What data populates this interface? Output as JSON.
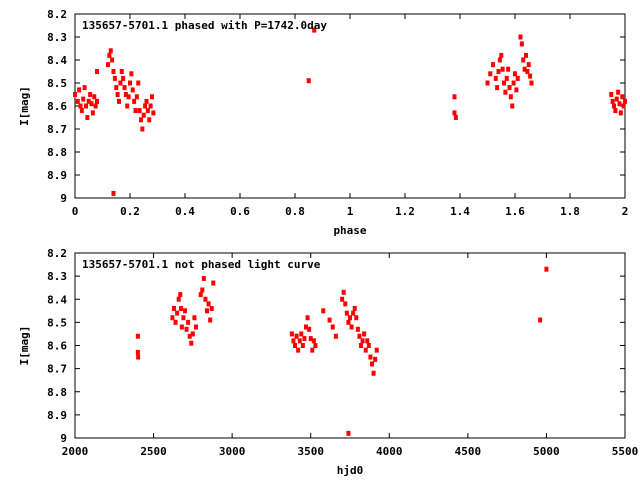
{
  "chart_data": [
    {
      "type": "scatter",
      "title": "135657-5701.1 phased with P=1742.0day",
      "xlabel": "phase",
      "ylabel": "I[mag]",
      "xlim": [
        0,
        2
      ],
      "ylim": [
        8.2,
        9.0
      ],
      "y_inverted": true,
      "x_ticks": [
        "0",
        "0.2",
        "0.4",
        "0.6",
        "0.8",
        "1",
        "1.2",
        "1.4",
        "1.6",
        "1.8",
        "2"
      ],
      "y_ticks": [
        "8.2",
        "8.3",
        "8.4",
        "8.5",
        "8.6",
        "8.7",
        "8.8",
        "8.9",
        "9"
      ],
      "marker_color": "#ff0000",
      "series": [
        {
          "points": [
            [
              0.0,
              8.55
            ],
            [
              0.01,
              8.58
            ],
            [
              0.015,
              8.53
            ],
            [
              0.02,
              8.6
            ],
            [
              0.025,
              8.62
            ],
            [
              0.03,
              8.57
            ],
            [
              0.035,
              8.52
            ],
            [
              0.04,
              8.6
            ],
            [
              0.045,
              8.65
            ],
            [
              0.05,
              8.58
            ],
            [
              0.055,
              8.55
            ],
            [
              0.06,
              8.59
            ],
            [
              0.065,
              8.63
            ],
            [
              0.07,
              8.56
            ],
            [
              0.075,
              8.6
            ],
            [
              0.08,
              8.58
            ],
            [
              0.08,
              8.45
            ],
            [
              0.12,
              8.42
            ],
            [
              0.125,
              8.38
            ],
            [
              0.13,
              8.36
            ],
            [
              0.135,
              8.4
            ],
            [
              0.14,
              8.45
            ],
            [
              0.145,
              8.48
            ],
            [
              0.15,
              8.52
            ],
            [
              0.155,
              8.55
            ],
            [
              0.16,
              8.58
            ],
            [
              0.165,
              8.5
            ],
            [
              0.17,
              8.45
            ],
            [
              0.175,
              8.48
            ],
            [
              0.18,
              8.52
            ],
            [
              0.185,
              8.55
            ],
            [
              0.19,
              8.6
            ],
            [
              0.195,
              8.56
            ],
            [
              0.2,
              8.5
            ],
            [
              0.205,
              8.46
            ],
            [
              0.21,
              8.53
            ],
            [
              0.215,
              8.58
            ],
            [
              0.22,
              8.62
            ],
            [
              0.225,
              8.56
            ],
            [
              0.23,
              8.5
            ],
            [
              0.14,
              8.98
            ],
            [
              0.235,
              8.62
            ],
            [
              0.24,
              8.66
            ],
            [
              0.245,
              8.7
            ],
            [
              0.25,
              8.64
            ],
            [
              0.255,
              8.6
            ],
            [
              0.26,
              8.58
            ],
            [
              0.265,
              8.62
            ],
            [
              0.27,
              8.66
            ],
            [
              0.275,
              8.6
            ],
            [
              0.28,
              8.56
            ],
            [
              0.285,
              8.63
            ],
            [
              0.85,
              8.49
            ],
            [
              0.87,
              8.27
            ],
            [
              1.38,
              8.56
            ],
            [
              1.38,
              8.63
            ],
            [
              1.385,
              8.65
            ],
            [
              1.5,
              8.5
            ],
            [
              1.51,
              8.46
            ],
            [
              1.52,
              8.42
            ],
            [
              1.53,
              8.48
            ],
            [
              1.535,
              8.52
            ],
            [
              1.54,
              8.45
            ],
            [
              1.545,
              8.4
            ],
            [
              1.55,
              8.38
            ],
            [
              1.555,
              8.44
            ],
            [
              1.56,
              8.5
            ],
            [
              1.565,
              8.54
            ],
            [
              1.57,
              8.48
            ],
            [
              1.575,
              8.44
            ],
            [
              1.58,
              8.52
            ],
            [
              1.585,
              8.56
            ],
            [
              1.59,
              8.6
            ],
            [
              1.595,
              8.5
            ],
            [
              1.6,
              8.46
            ],
            [
              1.605,
              8.53
            ],
            [
              1.61,
              8.48
            ],
            [
              1.62,
              8.3
            ],
            [
              1.625,
              8.33
            ],
            [
              1.63,
              8.4
            ],
            [
              1.635,
              8.44
            ],
            [
              1.64,
              8.38
            ],
            [
              1.645,
              8.45
            ],
            [
              1.65,
              8.42
            ],
            [
              1.655,
              8.47
            ],
            [
              1.66,
              8.5
            ],
            [
              1.95,
              8.55
            ],
            [
              1.955,
              8.58
            ],
            [
              1.96,
              8.6
            ],
            [
              1.965,
              8.62
            ],
            [
              1.97,
              8.57
            ],
            [
              1.975,
              8.54
            ],
            [
              1.98,
              8.59
            ],
            [
              1.985,
              8.63
            ],
            [
              1.99,
              8.56
            ],
            [
              1.995,
              8.6
            ],
            [
              2.0,
              8.58
            ]
          ]
        }
      ]
    },
    {
      "type": "scatter",
      "title": "135657-5701.1 not phased light curve",
      "xlabel": "hjd0",
      "ylabel": "I[mag]",
      "xlim": [
        2000,
        5500
      ],
      "ylim": [
        8.2,
        9.0
      ],
      "y_inverted": true,
      "x_ticks": [
        "2000",
        "2500",
        "3000",
        "3500",
        "4000",
        "4500",
        "5000",
        "5500"
      ],
      "y_ticks": [
        "8.2",
        "8.3",
        "8.4",
        "8.5",
        "8.6",
        "8.7",
        "8.8",
        "8.9",
        "9"
      ],
      "marker_color": "#ff0000",
      "series": [
        {
          "points": [
            [
              2400,
              8.56
            ],
            [
              2400,
              8.63
            ],
            [
              2402,
              8.65
            ],
            [
              2620,
              8.48
            ],
            [
              2630,
              8.44
            ],
            [
              2640,
              8.5
            ],
            [
              2650,
              8.46
            ],
            [
              2660,
              8.4
            ],
            [
              2670,
              8.38
            ],
            [
              2675,
              8.44
            ],
            [
              2680,
              8.52
            ],
            [
              2690,
              8.48
            ],
            [
              2700,
              8.45
            ],
            [
              2710,
              8.53
            ],
            [
              2720,
              8.5
            ],
            [
              2730,
              8.56
            ],
            [
              2740,
              8.59
            ],
            [
              2750,
              8.55
            ],
            [
              2760,
              8.48
            ],
            [
              2770,
              8.52
            ],
            [
              2800,
              8.38
            ],
            [
              2810,
              8.36
            ],
            [
              2820,
              8.31
            ],
            [
              2830,
              8.4
            ],
            [
              2840,
              8.45
            ],
            [
              2850,
              8.42
            ],
            [
              2860,
              8.49
            ],
            [
              2870,
              8.44
            ],
            [
              2880,
              8.33
            ],
            [
              3380,
              8.55
            ],
            [
              3390,
              8.58
            ],
            [
              3400,
              8.6
            ],
            [
              3410,
              8.56
            ],
            [
              3420,
              8.62
            ],
            [
              3430,
              8.58
            ],
            [
              3440,
              8.55
            ],
            [
              3450,
              8.6
            ],
            [
              3460,
              8.57
            ],
            [
              3470,
              8.52
            ],
            [
              3480,
              8.48
            ],
            [
              3490,
              8.53
            ],
            [
              3500,
              8.57
            ],
            [
              3510,
              8.62
            ],
            [
              3520,
              8.58
            ],
            [
              3530,
              8.6
            ],
            [
              3580,
              8.45
            ],
            [
              3620,
              8.49
            ],
            [
              3640,
              8.52
            ],
            [
              3660,
              8.56
            ],
            [
              3700,
              8.4
            ],
            [
              3710,
              8.37
            ],
            [
              3720,
              8.42
            ],
            [
              3730,
              8.46
            ],
            [
              3740,
              8.5
            ],
            [
              3750,
              8.48
            ],
            [
              3760,
              8.52
            ],
            [
              3770,
              8.46
            ],
            [
              3780,
              8.44
            ],
            [
              3790,
              8.48
            ],
            [
              3800,
              8.53
            ],
            [
              3810,
              8.56
            ],
            [
              3820,
              8.6
            ],
            [
              3830,
              8.58
            ],
            [
              3840,
              8.55
            ],
            [
              3850,
              8.62
            ],
            [
              3860,
              8.58
            ],
            [
              3870,
              8.6
            ],
            [
              3880,
              8.65
            ],
            [
              3890,
              8.68
            ],
            [
              3900,
              8.72
            ],
            [
              3910,
              8.66
            ],
            [
              3920,
              8.62
            ],
            [
              3740,
              8.98
            ],
            [
              4960,
              8.49
            ],
            [
              5000,
              8.27
            ]
          ]
        }
      ]
    }
  ]
}
